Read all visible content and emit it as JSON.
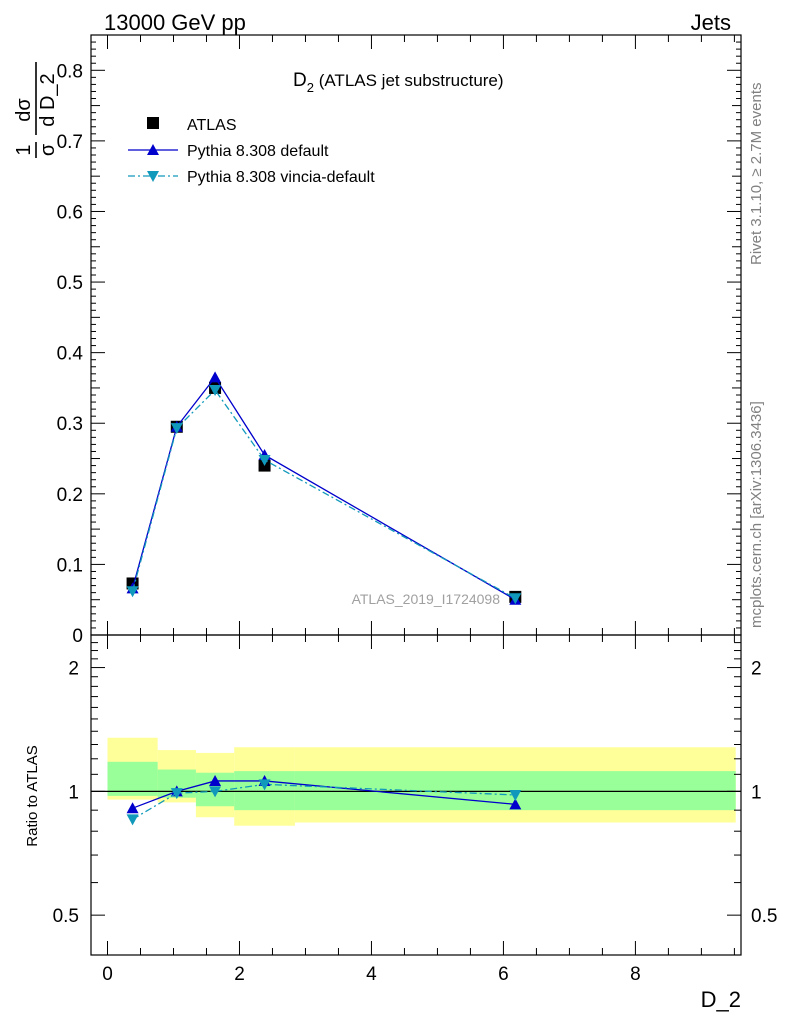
{
  "header": {
    "left": "13000 GeV pp",
    "right": "Jets"
  },
  "side_labels": {
    "rivet": "Rivet 3.1.10, ≥ 2.7M events",
    "mcplots": "mcplots.cern.ch [arXiv:1306.3436]"
  },
  "watermark": "ATLAS_2019_I1724098",
  "chart_data": [
    {
      "type": "scatter",
      "title_main": "D",
      "title_sub": "2",
      "title_rest": " (ATLAS jet substructure)",
      "ylabel_parts": {
        "num": "1",
        "den": "σ",
        "dnum": "dσ",
        "dden": "d D_2"
      },
      "ylim": [
        0,
        0.85
      ],
      "yticks": [
        0,
        0.1,
        0.2,
        0.3,
        0.4,
        0.5,
        0.6,
        0.7,
        0.8
      ],
      "ytick_labels": [
        "0",
        "0.1",
        "0.2",
        "0.3",
        "0.4",
        "0.5",
        "0.6",
        "0.7",
        "0.8"
      ],
      "legend_position": "top-left",
      "series": [
        {
          "name": "ATLAS",
          "color": "#000000",
          "marker": "square",
          "x": [
            0.38,
            1.05,
            1.63,
            2.38,
            6.18
          ],
          "y": [
            0.073,
            0.295,
            0.35,
            0.24,
            0.054
          ]
        },
        {
          "name": "Pythia 8.308 default",
          "color": "#0000cc",
          "marker": "triangle-up",
          "line": "solid",
          "x": [
            0.38,
            1.05,
            1.63,
            2.38,
            6.18
          ],
          "y": [
            0.066,
            0.295,
            0.365,
            0.255,
            0.05
          ]
        },
        {
          "name": "Pythia 8.308 vincia-default",
          "color": "#1199bb",
          "marker": "triangle-down",
          "line": "dashdot",
          "x": [
            0.38,
            1.05,
            1.63,
            2.38,
            6.18
          ],
          "y": [
            0.062,
            0.293,
            0.347,
            0.248,
            0.052
          ]
        }
      ]
    },
    {
      "type": "line",
      "ylabel": "Ratio to ATLAS",
      "xlabel": "D_2",
      "xlim": [
        -0.25,
        9.6
      ],
      "ylim": [
        0.4,
        2.4
      ],
      "log_y": true,
      "xticks": [
        0,
        2,
        4,
        6,
        8
      ],
      "xtick_labels": [
        "0",
        "2",
        "4",
        "6",
        "8"
      ],
      "yticks": [
        0.5,
        1,
        2
      ],
      "ytick_labels": [
        "0.5",
        "1",
        "2"
      ],
      "bins": [
        {
          "xlo": 0.0,
          "xhi": 0.76,
          "yellow": [
            0.955,
            1.35
          ],
          "green": [
            0.975,
            1.18
          ]
        },
        {
          "xlo": 0.76,
          "xhi": 1.34,
          "yellow": [
            0.94,
            1.26
          ],
          "green": [
            0.965,
            1.13
          ]
        },
        {
          "xlo": 1.34,
          "xhi": 1.92,
          "yellow": [
            0.865,
            1.24
          ],
          "green": [
            0.92,
            1.11
          ]
        },
        {
          "xlo": 1.92,
          "xhi": 2.84,
          "yellow": [
            0.825,
            1.28
          ],
          "green": [
            0.9,
            1.12
          ]
        },
        {
          "xlo": 2.84,
          "xhi": 9.52,
          "yellow": [
            0.84,
            1.28
          ],
          "green": [
            0.9,
            1.12
          ]
        }
      ],
      "series": [
        {
          "name": "Pythia 8.308 default",
          "color": "#0000cc",
          "marker": "triangle-up",
          "line": "solid",
          "x": [
            0.38,
            1.05,
            1.63,
            2.38,
            6.18
          ],
          "y": [
            0.91,
            1.0,
            1.06,
            1.06,
            0.93
          ]
        },
        {
          "name": "Pythia 8.308 vincia-default",
          "color": "#1199bb",
          "marker": "triangle-down",
          "line": "dashdot",
          "x": [
            0.38,
            1.05,
            1.63,
            2.38,
            6.18
          ],
          "y": [
            0.855,
            0.99,
            1.0,
            1.04,
            0.98
          ]
        }
      ]
    }
  ]
}
